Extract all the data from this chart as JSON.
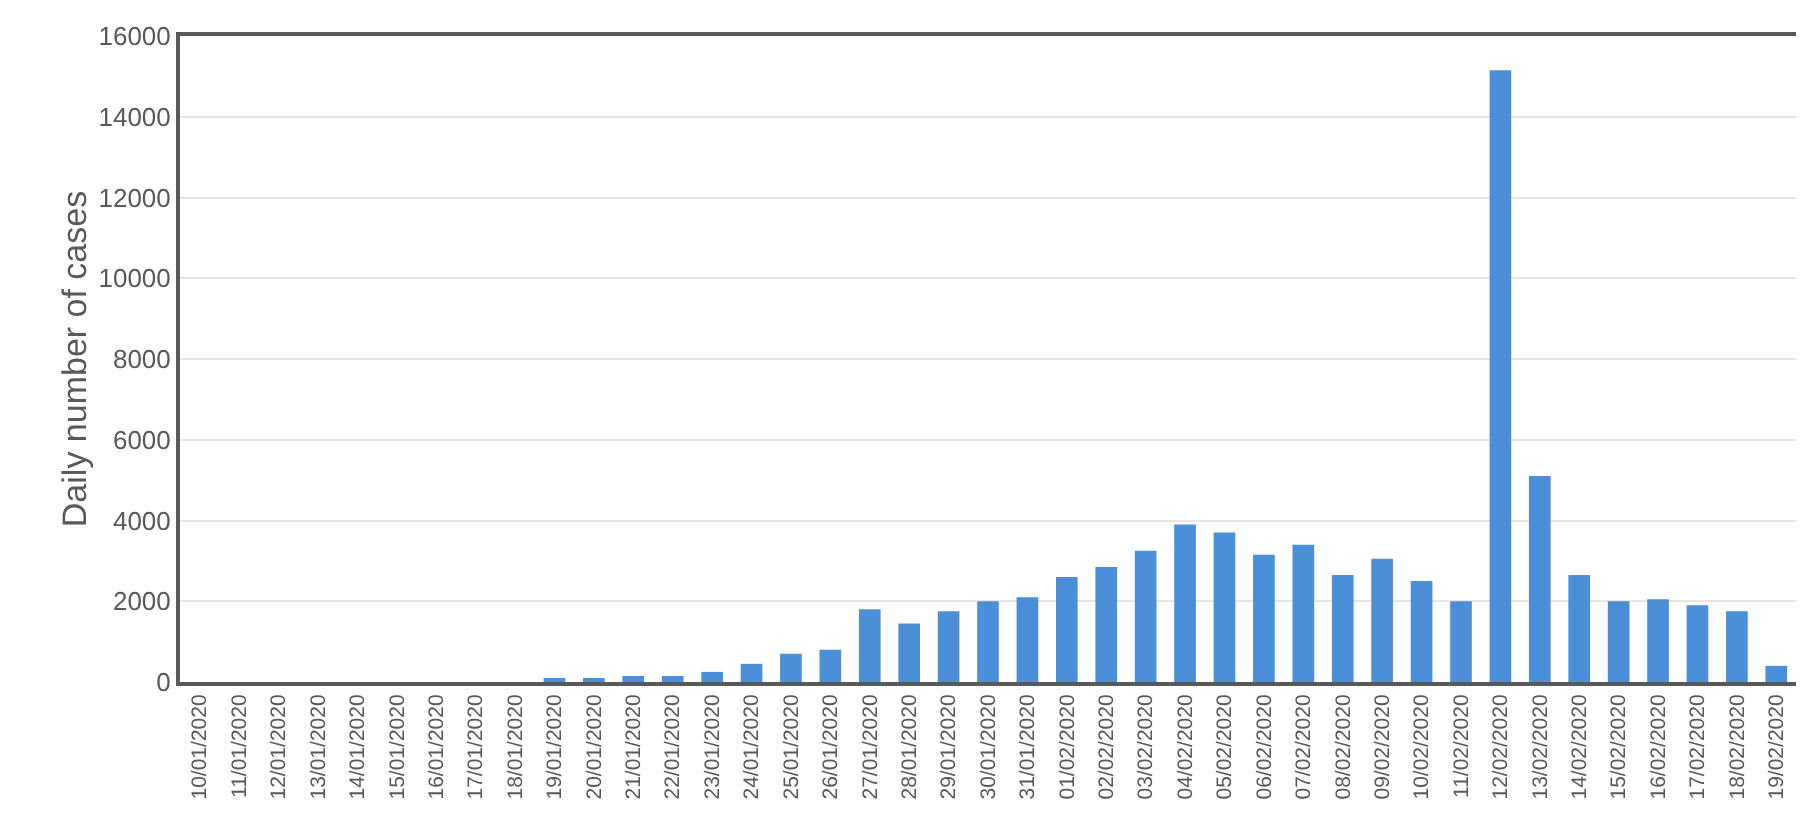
{
  "chart_data": {
    "type": "bar",
    "ylabel": "Daily number of cases",
    "categories": [
      "10/01/2020",
      "11/01/2020",
      "12/01/2020",
      "13/01/2020",
      "14/01/2020",
      "15/01/2020",
      "16/01/2020",
      "17/01/2020",
      "18/01/2020",
      "19/01/2020",
      "20/01/2020",
      "21/01/2020",
      "22/01/2020",
      "23/01/2020",
      "24/01/2020",
      "25/01/2020",
      "26/01/2020",
      "27/01/2020",
      "28/01/2020",
      "29/01/2020",
      "30/01/2020",
      "31/01/2020",
      "01/02/2020",
      "02/02/2020",
      "03/02/2020",
      "04/02/2020",
      "05/02/2020",
      "06/02/2020",
      "07/02/2020",
      "08/02/2020",
      "09/02/2020",
      "10/02/2020",
      "11/02/2020",
      "12/02/2020",
      "13/02/2020",
      "14/02/2020",
      "15/02/2020",
      "16/02/2020",
      "17/02/2020",
      "18/02/2020",
      "19/02/2020"
    ],
    "values": [
      0,
      0,
      0,
      0,
      0,
      0,
      0,
      0,
      0,
      100,
      100,
      150,
      150,
      250,
      450,
      700,
      800,
      1800,
      1450,
      1750,
      2000,
      2100,
      2600,
      2850,
      3250,
      3900,
      3700,
      3150,
      3400,
      2650,
      3050,
      2500,
      2000,
      15150,
      5100,
      2650,
      2000,
      2050,
      1900,
      1750,
      400
    ],
    "color": "#4a8fd8",
    "ylim": [
      0,
      16000
    ],
    "yticks": [
      0,
      2000,
      4000,
      6000,
      8000,
      10000,
      12000,
      14000,
      16000
    ],
    "grid": "y",
    "legend": false
  }
}
